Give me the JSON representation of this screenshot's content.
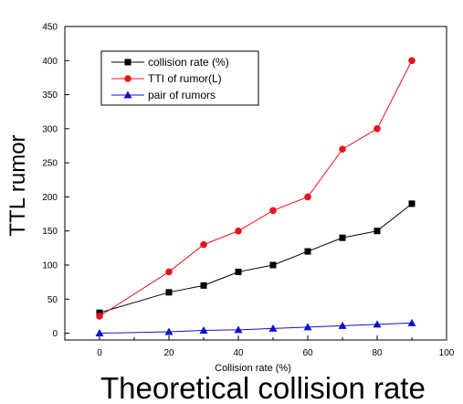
{
  "chart_data": {
    "type": "line",
    "ylabel": "TTL rumor",
    "xlabel": "Collision rate (%)",
    "caption": "Theoretical collision rate",
    "xlim": [
      -10,
      100
    ],
    "ylim": [
      -10,
      450
    ],
    "x_ticks": [
      "0",
      "20",
      "40",
      "60",
      "80",
      "100"
    ],
    "y_ticks": [
      "0",
      "50",
      "100",
      "150",
      "200",
      "250",
      "300",
      "350",
      "400",
      "450"
    ],
    "legend_position": "top-left",
    "grid": false,
    "series": [
      {
        "name": "collision rate (%)",
        "color": "#000000",
        "marker": "square",
        "points": [
          [
            0,
            30
          ],
          [
            20,
            60
          ],
          [
            30,
            70
          ],
          [
            40,
            90
          ],
          [
            50,
            100
          ],
          [
            60,
            120
          ],
          [
            70,
            140
          ],
          [
            80,
            150
          ],
          [
            90,
            190
          ]
        ]
      },
      {
        "name": "TTI of rumor(L)",
        "color": "#e8141c",
        "marker": "circle",
        "points": [
          [
            0,
            25
          ],
          [
            20,
            90
          ],
          [
            30,
            130
          ],
          [
            40,
            150
          ],
          [
            50,
            180
          ],
          [
            60,
            200
          ],
          [
            70,
            270
          ],
          [
            80,
            300
          ],
          [
            90,
            400
          ]
        ]
      },
      {
        "name": "pair of rumors",
        "color": "#1010d0",
        "marker": "triangle",
        "points": [
          [
            0,
            0
          ],
          [
            20,
            2
          ],
          [
            30,
            4
          ],
          [
            40,
            5
          ],
          [
            50,
            7
          ],
          [
            60,
            9
          ],
          [
            70,
            11
          ],
          [
            80,
            13
          ],
          [
            90,
            15
          ]
        ]
      }
    ]
  }
}
